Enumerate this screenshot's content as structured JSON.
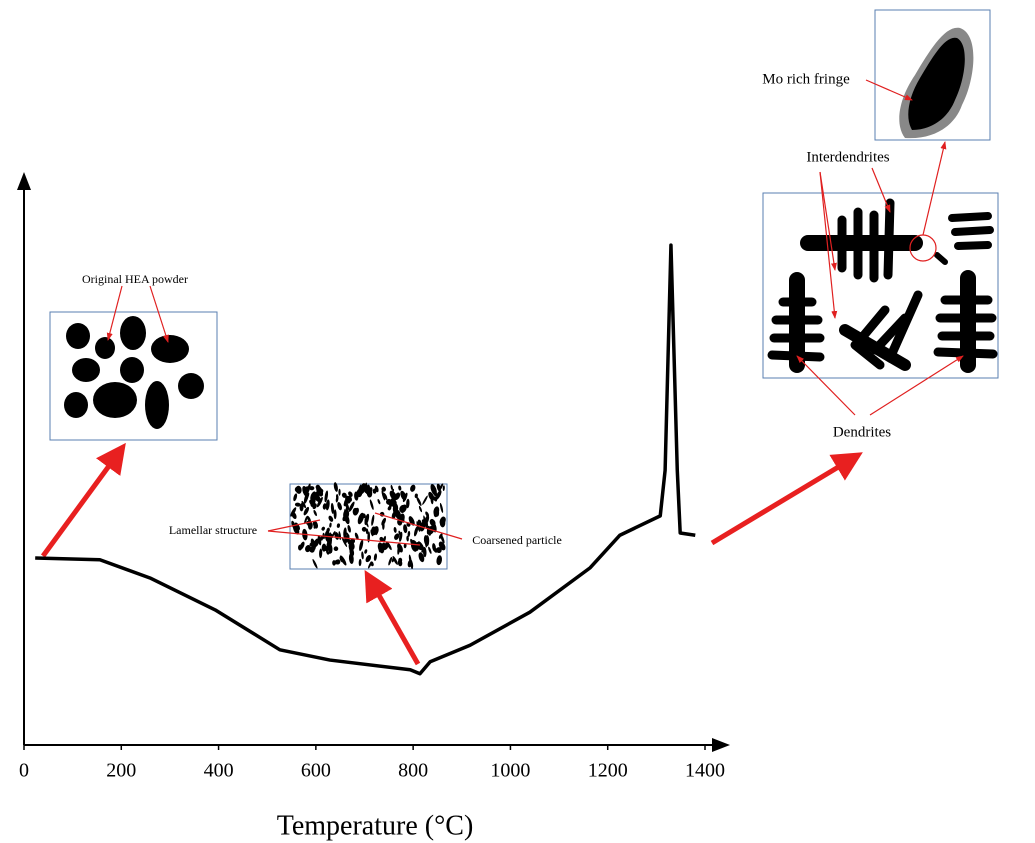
{
  "chart_data": {
    "type": "line",
    "x_label": "Temperature (°C)",
    "xlim": [
      -50,
      1450
    ],
    "xticks": [
      0,
      200,
      400,
      600,
      800,
      1000,
      1200,
      1400
    ],
    "ylim": [
      0,
      100
    ],
    "series": [
      {
        "color": "#000000",
        "x": [
          23,
          156,
          259,
          393,
          526,
          629,
          794,
          814,
          835,
          917,
          1040,
          1164,
          1225,
          1308,
          1318,
          1330,
          1343,
          1349,
          1380
        ],
        "values": [
          32.8,
          32.5,
          29.3,
          23.7,
          16.7,
          14.9,
          13.2,
          12.5,
          14.6,
          17.5,
          23.3,
          31.1,
          36.8,
          40.2,
          48.2,
          87.7,
          48.2,
          37.2,
          36.8
        ]
      }
    ],
    "annotations": [
      "Original HEA powder",
      "Lamellar structure",
      "Coarsened particle",
      "Interdendrites",
      "Mo rich fringe",
      "Dendrites"
    ]
  }
}
